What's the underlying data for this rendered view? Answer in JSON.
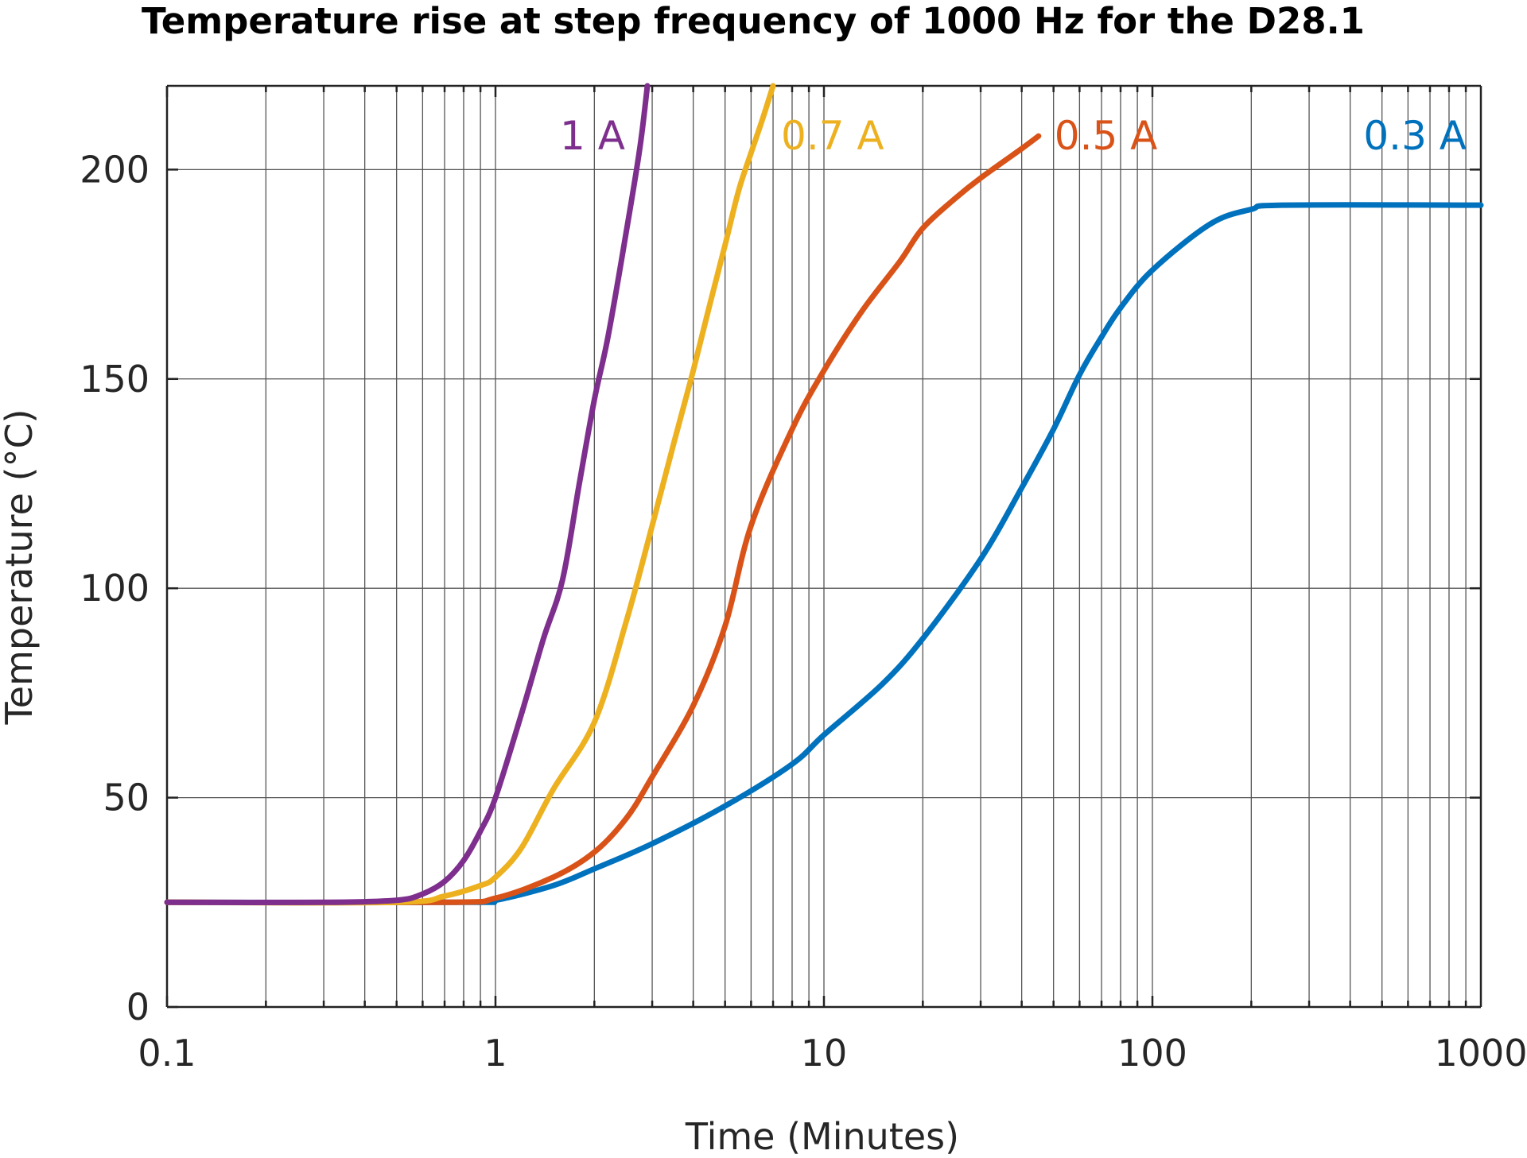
{
  "chart_data": {
    "type": "line",
    "title": "Temperature rise at step frequency of 1000 Hz for the D28.1",
    "xlabel": "Time (Minutes)",
    "ylabel": "Temperature (°C)",
    "xscale": "log",
    "xlim": [
      0.1,
      1000
    ],
    "ylim": [
      0,
      220
    ],
    "grid": true,
    "x_ticks": [
      0.1,
      1,
      10,
      100,
      1000
    ],
    "x_tick_labels": [
      "0.1",
      "1",
      "10",
      "100",
      "1000"
    ],
    "y_ticks": [
      0,
      50,
      100,
      150,
      200
    ],
    "y_tick_labels": [
      "0",
      "50",
      "100",
      "150",
      "200"
    ],
    "series": [
      {
        "name": "1 A",
        "label": "1 A",
        "color": "#7E2F8E",
        "points": [
          [
            0.1,
            25
          ],
          [
            0.3,
            25
          ],
          [
            0.5,
            25.5
          ],
          [
            0.6,
            27
          ],
          [
            0.7,
            30
          ],
          [
            0.8,
            35
          ],
          [
            0.9,
            42
          ],
          [
            1.0,
            50
          ],
          [
            1.2,
            70
          ],
          [
            1.4,
            88
          ],
          [
            1.6,
            102
          ],
          [
            1.8,
            125
          ],
          [
            2.0,
            145
          ],
          [
            2.2,
            160
          ],
          [
            2.5,
            185
          ],
          [
            2.75,
            205
          ],
          [
            2.9,
            220
          ]
        ]
      },
      {
        "name": "0.7 A",
        "label": "0.7 A",
        "color": "#EDB120",
        "points": [
          [
            0.1,
            25
          ],
          [
            0.5,
            25
          ],
          [
            0.7,
            26.5
          ],
          [
            0.9,
            29
          ],
          [
            1.0,
            31
          ],
          [
            1.2,
            38
          ],
          [
            1.5,
            52
          ],
          [
            2.0,
            68
          ],
          [
            2.5,
            92
          ],
          [
            3.0,
            115
          ],
          [
            3.5,
            135
          ],
          [
            4.0,
            152
          ],
          [
            4.5,
            168
          ],
          [
            5.0,
            182
          ],
          [
            5.5,
            195
          ],
          [
            6.0,
            204
          ],
          [
            6.5,
            212
          ],
          [
            7.0,
            220
          ]
        ]
      },
      {
        "name": "0.5 A",
        "label": "0.5 A",
        "color": "#D95319",
        "points": [
          [
            0.1,
            25
          ],
          [
            0.7,
            25
          ],
          [
            1.0,
            26
          ],
          [
            1.5,
            31
          ],
          [
            2.0,
            37
          ],
          [
            2.5,
            45
          ],
          [
            3.0,
            55
          ],
          [
            4.0,
            72
          ],
          [
            5.0,
            91
          ],
          [
            6.0,
            115
          ],
          [
            8.0,
            138
          ],
          [
            10.0,
            152
          ],
          [
            13.0,
            166
          ],
          [
            17.0,
            178
          ],
          [
            20.0,
            186
          ],
          [
            25.0,
            193
          ],
          [
            30.0,
            198
          ],
          [
            40.0,
            205
          ],
          [
            45.0,
            208
          ]
        ]
      },
      {
        "name": "0.3 A",
        "label": "0.3 A",
        "color": "#0072BD",
        "points": [
          [
            0.1,
            25
          ],
          [
            0.8,
            25
          ],
          [
            1.0,
            25.5
          ],
          [
            1.5,
            29
          ],
          [
            2.0,
            33
          ],
          [
            3.0,
            39
          ],
          [
            5.0,
            48
          ],
          [
            8.0,
            58
          ],
          [
            10.0,
            65
          ],
          [
            15.0,
            77
          ],
          [
            20.0,
            88
          ],
          [
            30.0,
            107
          ],
          [
            40.0,
            124
          ],
          [
            50.0,
            138
          ],
          [
            60.0,
            151
          ],
          [
            70.0,
            160
          ],
          [
            80.0,
            167
          ],
          [
            100.0,
            176
          ],
          [
            150.0,
            187
          ],
          [
            200.0,
            190.5
          ],
          [
            250.0,
            191.5
          ],
          [
            1000.0,
            191.5
          ]
        ]
      }
    ]
  }
}
